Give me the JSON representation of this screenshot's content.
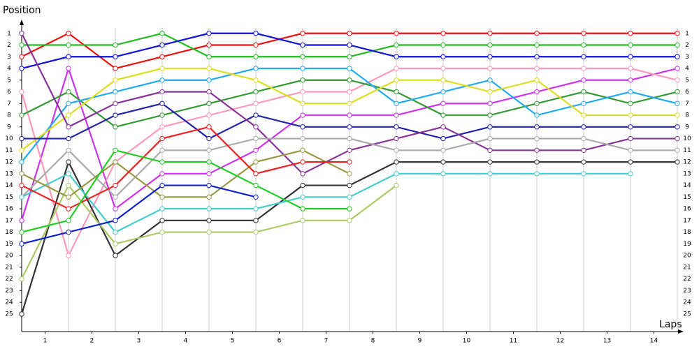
{
  "chart_data": {
    "type": "line",
    "y_label": "Position",
    "x_label": "Laps",
    "x": [
      0,
      1,
      2,
      3,
      4,
      5,
      6,
      7,
      8,
      9,
      10,
      11,
      12,
      13,
      14
    ],
    "xlim": [
      0,
      14
    ],
    "xticks": [
      {
        "value": 0.5,
        "label": "1"
      },
      {
        "value": 1.5,
        "label": "2"
      },
      {
        "value": 2.5,
        "label": "3"
      },
      {
        "value": 3.5,
        "label": "4"
      },
      {
        "value": 4.5,
        "label": "5"
      },
      {
        "value": 5.5,
        "label": "6"
      },
      {
        "value": 6.5,
        "label": "7"
      },
      {
        "value": 7.5,
        "label": "8"
      },
      {
        "value": 8.5,
        "label": "9"
      },
      {
        "value": 9.5,
        "label": "10"
      },
      {
        "value": 10.5,
        "label": "11"
      },
      {
        "value": 11.5,
        "label": "12"
      },
      {
        "value": 12.5,
        "label": "13"
      },
      {
        "value": 13.5,
        "label": "14"
      }
    ],
    "ylim": [
      26.5,
      0
    ],
    "yticks": [
      1,
      2,
      3,
      4,
      5,
      6,
      7,
      8,
      9,
      10,
      11,
      12,
      13,
      14,
      15,
      16,
      17,
      18,
      19,
      20,
      21,
      22,
      23,
      24,
      25
    ],
    "series": [
      {
        "color": "#ee1111",
        "values": [
          3,
          1,
          4,
          3,
          2,
          2,
          1,
          1,
          1,
          1,
          1,
          1,
          1,
          1,
          1
        ]
      },
      {
        "color": "#22bb22",
        "values": [
          2,
          2,
          2,
          1,
          3,
          3,
          3,
          3,
          2,
          2,
          2,
          2,
          2,
          2,
          2
        ]
      },
      {
        "color": "#1111dd",
        "values": [
          4,
          3,
          3,
          2,
          1,
          1,
          2,
          2,
          3,
          3,
          3,
          3,
          3,
          3,
          3
        ]
      },
      {
        "color": "#cc33ee",
        "values": [
          17,
          4,
          16,
          13,
          13,
          11,
          8,
          8,
          8,
          7,
          7,
          6,
          5,
          5,
          4
        ]
      },
      {
        "color": "#ff99bb",
        "values": [
          6,
          20,
          12,
          9,
          8,
          7,
          6,
          6,
          4,
          4,
          4,
          4,
          4,
          4,
          5
        ]
      },
      {
        "color": "#339933",
        "values": [
          8,
          6,
          9,
          8,
          7,
          6,
          5,
          5,
          6,
          8,
          8,
          7,
          6,
          7,
          6
        ]
      },
      {
        "color": "#22aaee",
        "values": [
          12,
          7,
          6,
          5,
          5,
          4,
          4,
          4,
          7,
          6,
          5,
          8,
          7,
          6,
          7
        ]
      },
      {
        "color": "#dddd22",
        "values": [
          11,
          8,
          5,
          4,
          4,
          5,
          7,
          7,
          5,
          5,
          6,
          5,
          8,
          8,
          8
        ]
      },
      {
        "color": "#2222aa",
        "values": [
          10,
          10,
          8,
          7,
          10,
          8,
          9,
          9,
          9,
          10,
          9,
          9,
          9,
          9,
          9
        ]
      },
      {
        "color": "#883399",
        "values": [
          1,
          9,
          7,
          6,
          6,
          9,
          13,
          11,
          10,
          9,
          11,
          11,
          11,
          10,
          10
        ]
      },
      {
        "color": "#aaaaaa",
        "values": [
          15,
          11,
          15,
          11,
          11,
          10,
          10,
          10,
          11,
          11,
          10,
          10,
          10,
          11,
          11
        ]
      },
      {
        "color": "#333333",
        "values": [
          25,
          12,
          20,
          17,
          17,
          17,
          14,
          14,
          12,
          12,
          12,
          12,
          12,
          12,
          12
        ]
      },
      {
        "color": "#44cccc",
        "values": [
          15,
          13,
          18,
          16,
          16,
          16,
          15,
          15,
          13,
          13,
          13,
          13,
          13,
          13,
          null
        ]
      },
      {
        "color": "#aacc66",
        "values": [
          22,
          14,
          19,
          18,
          18,
          18,
          17,
          17,
          14,
          null,
          null,
          null,
          null,
          null,
          null
        ]
      },
      {
        "color": "#999944",
        "values": [
          13,
          15,
          12,
          15,
          15,
          12,
          11,
          13,
          null,
          null,
          null,
          null,
          null,
          null,
          null
        ]
      },
      {
        "color": "#ee2222",
        "values": [
          14,
          16,
          14,
          10,
          9,
          13,
          12,
          12,
          null,
          null,
          null,
          null,
          null,
          null,
          null
        ]
      },
      {
        "color": "#22cc22",
        "values": [
          18,
          17,
          11,
          12,
          12,
          14,
          16,
          16,
          null,
          null,
          null,
          null,
          null,
          null,
          null
        ]
      },
      {
        "color": "#1122cc",
        "values": [
          19,
          18,
          17,
          14,
          14,
          15,
          null,
          null,
          null,
          null,
          null,
          null,
          null,
          null,
          null
        ]
      }
    ]
  }
}
